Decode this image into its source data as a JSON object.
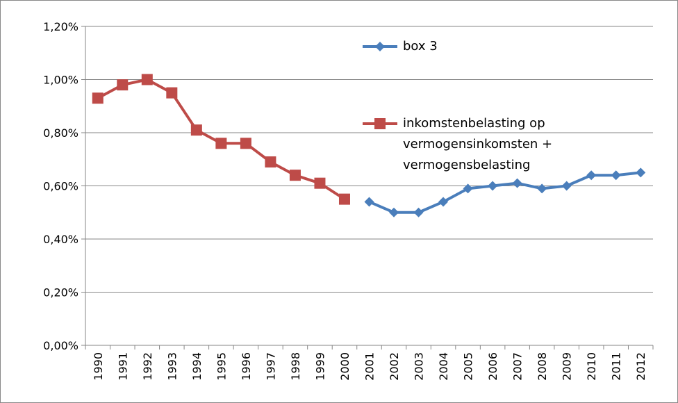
{
  "chart_data": {
    "type": "line",
    "categories": [
      "1990",
      "1991",
      "1992",
      "1993",
      "1994",
      "1995",
      "1996",
      "1997",
      "1998",
      "1999",
      "2000",
      "2001",
      "2002",
      "2003",
      "2004",
      "2005",
      "2006",
      "2007",
      "2008",
      "2009",
      "2010",
      "2011",
      "2012"
    ],
    "series": [
      {
        "name": "box 3",
        "color": "#4a7ebb",
        "marker": "diamond",
        "values": [
          null,
          null,
          null,
          null,
          null,
          null,
          null,
          null,
          null,
          null,
          null,
          0.54,
          0.5,
          0.5,
          0.54,
          0.59,
          0.6,
          0.61,
          0.59,
          0.6,
          0.64,
          0.64,
          0.65
        ]
      },
      {
        "name": "inkomstenbelasting op vermogensinkomsten + vermogensbelasting",
        "color": "#be4b48",
        "marker": "square",
        "values": [
          0.93,
          0.98,
          1.0,
          0.95,
          0.81,
          0.76,
          0.76,
          0.69,
          0.64,
          0.61,
          0.55,
          null,
          null,
          null,
          null,
          null,
          null,
          null,
          null,
          null,
          null,
          null,
          null
        ]
      }
    ],
    "ylim": [
      0,
      1.2
    ],
    "yticks": [
      {
        "value": 0,
        "label": "0,00%"
      },
      {
        "value": 0.2,
        "label": "0,20%"
      },
      {
        "value": 0.4,
        "label": "0,40%"
      },
      {
        "value": 0.6,
        "label": "0,60%"
      },
      {
        "value": 0.8,
        "label": "0,80%"
      },
      {
        "value": 1.0,
        "label": "1,00%"
      },
      {
        "value": 1.2,
        "label": "1,20%"
      }
    ],
    "grid": true
  }
}
